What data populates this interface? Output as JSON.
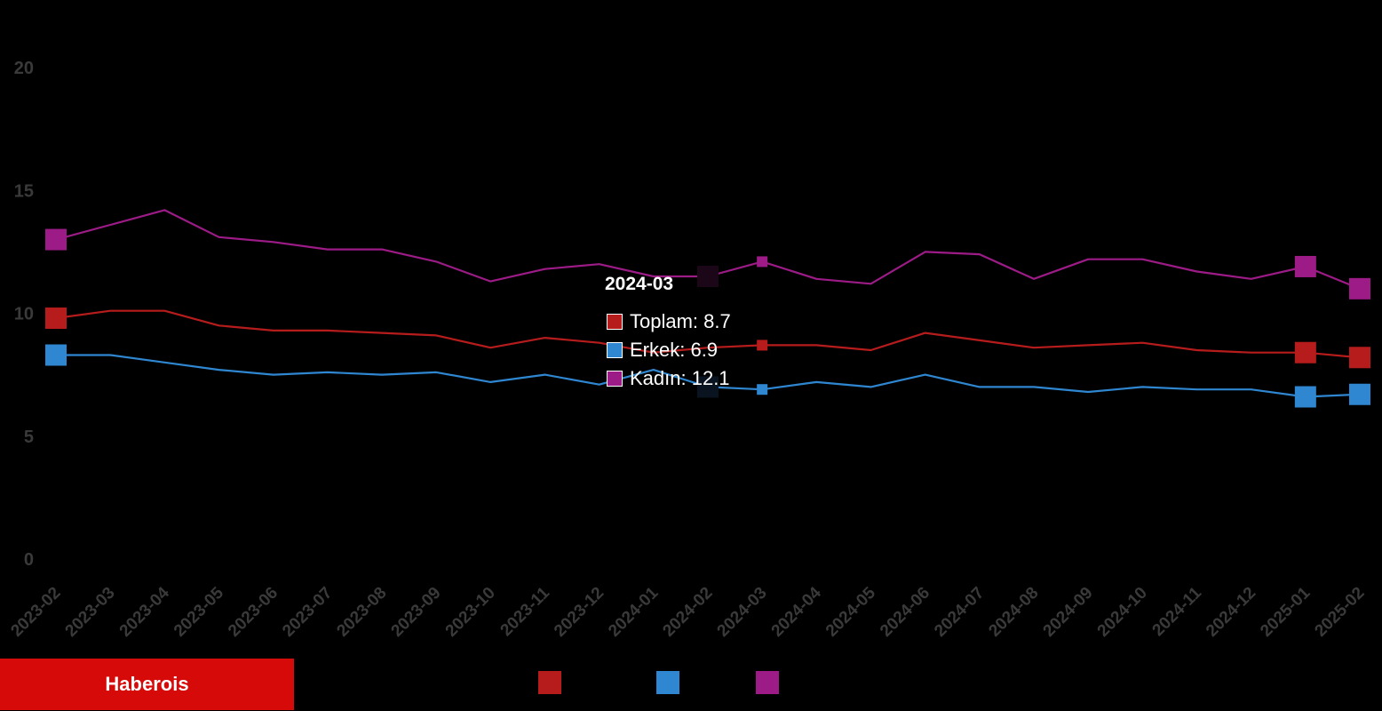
{
  "brand": {
    "label": "Haberois",
    "color": "#d70a0a"
  },
  "tooltip": {
    "title": "2024-03",
    "rows": [
      {
        "series": "Toplam",
        "text": "Toplam: 8.7",
        "color": "#b71c1c"
      },
      {
        "series": "Erkek",
        "text": "Erkek: 6.9",
        "color": "#2f86d1"
      },
      {
        "series": "Kadın",
        "text": "Kadın: 12.1",
        "color": "#9c1b87"
      }
    ]
  },
  "chart_data": {
    "type": "line",
    "title": "",
    "xlabel": "",
    "ylabel": "",
    "ylim": [
      0,
      20
    ],
    "yticks": [
      0,
      5,
      10,
      15,
      20
    ],
    "grid": false,
    "legend_position": "bottom",
    "categories": [
      "2023-02",
      "2023-03",
      "2023-04",
      "2023-05",
      "2023-06",
      "2023-07",
      "2023-08",
      "2023-09",
      "2023-10",
      "2023-11",
      "2023-12",
      "2024-01",
      "2024-02",
      "2024-03",
      "2024-04",
      "2024-05",
      "2024-06",
      "2024-07",
      "2024-08",
      "2024-09",
      "2024-10",
      "2024-11",
      "2024-12",
      "2025-01",
      "2025-02"
    ],
    "highlighted_category": "2024-03",
    "series": [
      {
        "name": "Toplam",
        "color": "#b71c1c",
        "values": [
          9.8,
          10.1,
          10.1,
          9.5,
          9.3,
          9.3,
          9.2,
          9.1,
          8.6,
          9.0,
          8.8,
          8.4,
          8.6,
          8.7,
          8.7,
          8.5,
          9.2,
          8.9,
          8.6,
          8.7,
          8.8,
          8.5,
          8.4,
          8.4,
          8.2
        ]
      },
      {
        "name": "Erkek",
        "color": "#2f86d1",
        "values": [
          8.3,
          8.3,
          8.0,
          7.7,
          7.5,
          7.6,
          7.5,
          7.6,
          7.2,
          7.5,
          7.1,
          7.7,
          7.0,
          6.9,
          7.2,
          7.0,
          7.5,
          7.0,
          7.0,
          6.8,
          7.0,
          6.9,
          6.9,
          6.6,
          6.7
        ]
      },
      {
        "name": "Kadın",
        "color": "#9c1b87",
        "values": [
          13.0,
          13.6,
          14.2,
          13.1,
          12.9,
          12.6,
          12.6,
          12.1,
          11.3,
          11.8,
          12.0,
          11.5,
          11.5,
          12.1,
          11.4,
          11.2,
          12.5,
          12.4,
          11.4,
          12.2,
          12.2,
          11.7,
          11.4,
          11.9,
          11.0
        ]
      }
    ]
  }
}
